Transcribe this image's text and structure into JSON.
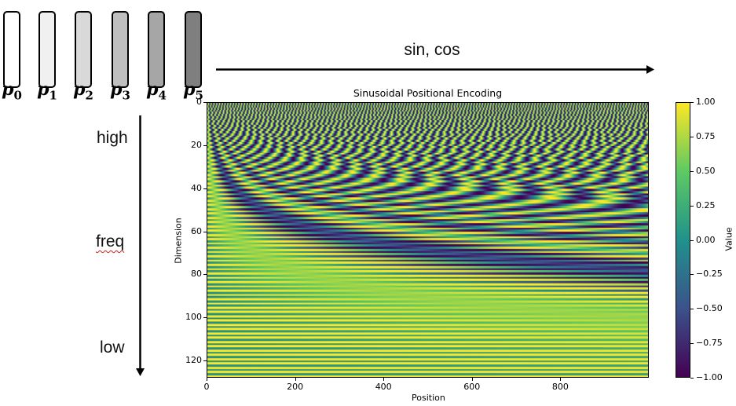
{
  "tokens": [
    {
      "base": "p",
      "sub": "0",
      "fill": "#ffffff"
    },
    {
      "base": "p",
      "sub": "1",
      "fill": "#f0f0f0"
    },
    {
      "base": "p",
      "sub": "2",
      "fill": "#d9d9d9"
    },
    {
      "base": "p",
      "sub": "3",
      "fill": "#bfbfbf"
    },
    {
      "base": "p",
      "sub": "4",
      "fill": "#a6a6a6"
    },
    {
      "base": "p",
      "sub": "5",
      "fill": "#7f7f7f"
    }
  ],
  "arrow_label": "sin, cos",
  "freq_labels": {
    "high": "high",
    "mid": "freq",
    "low": "low"
  },
  "chart_data": {
    "type": "heatmap",
    "title": "Sinusoidal Positional Encoding",
    "xlabel": "Position",
    "ylabel": "Dimension",
    "x_ticks": [
      "0",
      "200",
      "400",
      "600",
      "800"
    ],
    "y_ticks": [
      "0",
      "20",
      "40",
      "60",
      "80",
      "100",
      "120"
    ],
    "xlim": [
      0,
      1000
    ],
    "ylim": [
      128,
      0
    ],
    "n_positions": 1000,
    "d_model": 128,
    "colormap": "viridis",
    "colorbar": {
      "label": "Value",
      "ticks": [
        "1.00",
        "0.75",
        "0.50",
        "0.25",
        "0.00",
        "−0.25",
        "−0.50",
        "−0.75",
        "−1.00"
      ],
      "range": [
        -1,
        1
      ]
    }
  }
}
